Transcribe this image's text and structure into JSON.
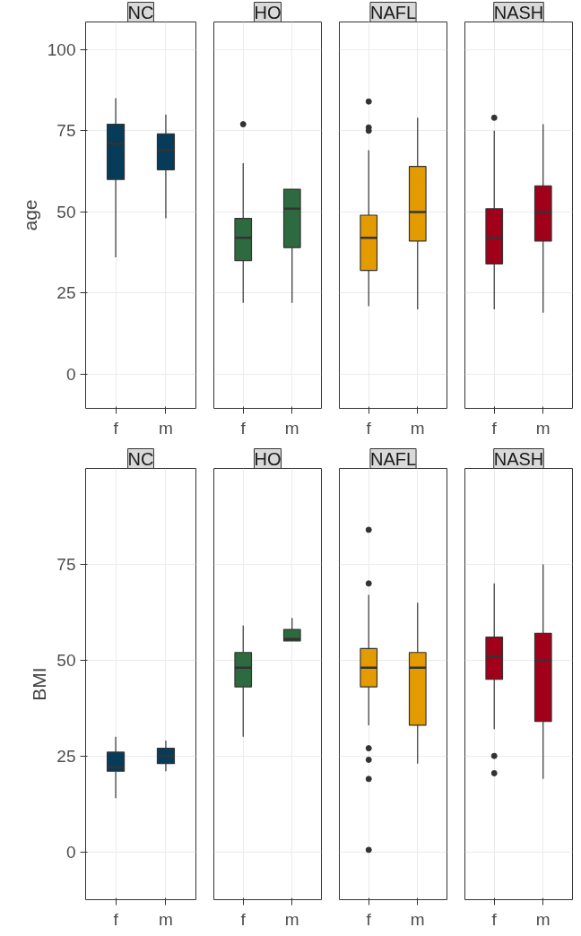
{
  "chart_data": [
    {
      "type": "box",
      "title": "NC",
      "ylabel": "age",
      "categories": [
        "f",
        "m"
      ],
      "color": "#073b5a",
      "ylim": [
        -10.5,
        108.5
      ],
      "yticks": [
        0,
        25,
        50,
        75,
        100
      ],
      "grid": true,
      "boxes": [
        {
          "low": 36,
          "q1": 60,
          "median": 71,
          "q3": 77,
          "high": 85
        },
        {
          "low": 48,
          "q1": 63,
          "median": 69,
          "q3": 74,
          "high": 80
        }
      ]
    },
    {
      "type": "box",
      "title": "HO",
      "categories": [
        "f",
        "m"
      ],
      "color": "#2e6a3f",
      "ylim": [
        -10.5,
        108.5
      ],
      "yticks": [
        0,
        25,
        50,
        75,
        100
      ],
      "grid": true,
      "tick_labels": "x",
      "boxes": [
        {
          "low": 22,
          "q1": 35,
          "median": 42,
          "q3": 48,
          "high": 65,
          "outliers": [
            77
          ]
        },
        {
          "low": 22,
          "q1": 39,
          "median": 51,
          "q3": 57,
          "high": 57
        }
      ]
    },
    {
      "type": "box",
      "title": "NAFL",
      "categories": [
        "f",
        "m"
      ],
      "color": "#e39b00",
      "ylim": [
        -10.5,
        108.5
      ],
      "yticks": [
        0,
        25,
        50,
        75,
        100
      ],
      "grid": true,
      "tick_labels": "x",
      "boxes": [
        {
          "low": 21,
          "q1": 32,
          "median": 42,
          "q3": 49,
          "high": 69,
          "outliers": [
            75,
            76,
            84
          ]
        },
        {
          "low": 20,
          "q1": 41,
          "median": 50,
          "q3": 64,
          "high": 79
        }
      ]
    },
    {
      "type": "box",
      "title": "NASH",
      "categories": [
        "f",
        "m"
      ],
      "color": "#a0001a",
      "ylim": [
        -10.5,
        108.5
      ],
      "yticks": [
        0,
        25,
        50,
        75,
        100
      ],
      "grid": true,
      "tick_labels": "x",
      "boxes": [
        {
          "low": 20,
          "q1": 34,
          "median": 42,
          "q3": 51,
          "high": 75,
          "outliers": [
            79
          ]
        },
        {
          "low": 19,
          "q1": 41,
          "median": 50,
          "q3": 58,
          "high": 77
        }
      ]
    },
    {
      "type": "box",
      "title": "NC",
      "ylabel": "BMI",
      "categories": [
        "f",
        "m"
      ],
      "color": "#073b5a",
      "ylim": [
        -12.5,
        100
      ],
      "yticks": [
        0,
        25,
        50,
        75
      ],
      "grid": true,
      "boxes": [
        {
          "low": 14,
          "q1": 21,
          "median": 22,
          "q3": 26,
          "high": 30
        },
        {
          "low": 21,
          "q1": 23,
          "median": 25,
          "q3": 27,
          "high": 29
        }
      ]
    },
    {
      "type": "box",
      "title": "HO",
      "categories": [
        "f",
        "m"
      ],
      "color": "#2e6a3f",
      "ylim": [
        -12.5,
        100
      ],
      "yticks": [
        0,
        25,
        50,
        75
      ],
      "grid": true,
      "tick_labels": "x",
      "boxes": [
        {
          "low": 30,
          "q1": 43,
          "median": 48,
          "q3": 52,
          "high": 59
        },
        {
          "low": 55,
          "q1": 55,
          "median": 55.5,
          "q3": 58,
          "high": 61
        }
      ]
    },
    {
      "type": "box",
      "title": "NAFL",
      "categories": [
        "f",
        "m"
      ],
      "color": "#e39b00",
      "ylim": [
        -12.5,
        100
      ],
      "yticks": [
        0,
        25,
        50,
        75
      ],
      "grid": true,
      "tick_labels": "x",
      "boxes": [
        {
          "low": 33,
          "q1": 43,
          "median": 48,
          "q3": 53,
          "high": 67,
          "outliers": [
            0.5,
            19,
            24,
            27,
            70,
            84
          ]
        },
        {
          "low": 23,
          "q1": 33,
          "median": 48,
          "q3": 52,
          "high": 65
        }
      ]
    },
    {
      "type": "box",
      "title": "NASH",
      "categories": [
        "f",
        "m"
      ],
      "color": "#a0001a",
      "ylim": [
        -12.5,
        100
      ],
      "yticks": [
        0,
        25,
        50,
        75
      ],
      "grid": true,
      "tick_labels": "x",
      "boxes": [
        {
          "low": 32,
          "q1": 45,
          "median": 51,
          "q3": 56,
          "high": 70,
          "outliers": [
            20.5,
            25
          ]
        },
        {
          "low": 19,
          "q1": 34,
          "median": 50,
          "q3": 57,
          "high": 75
        }
      ]
    }
  ]
}
